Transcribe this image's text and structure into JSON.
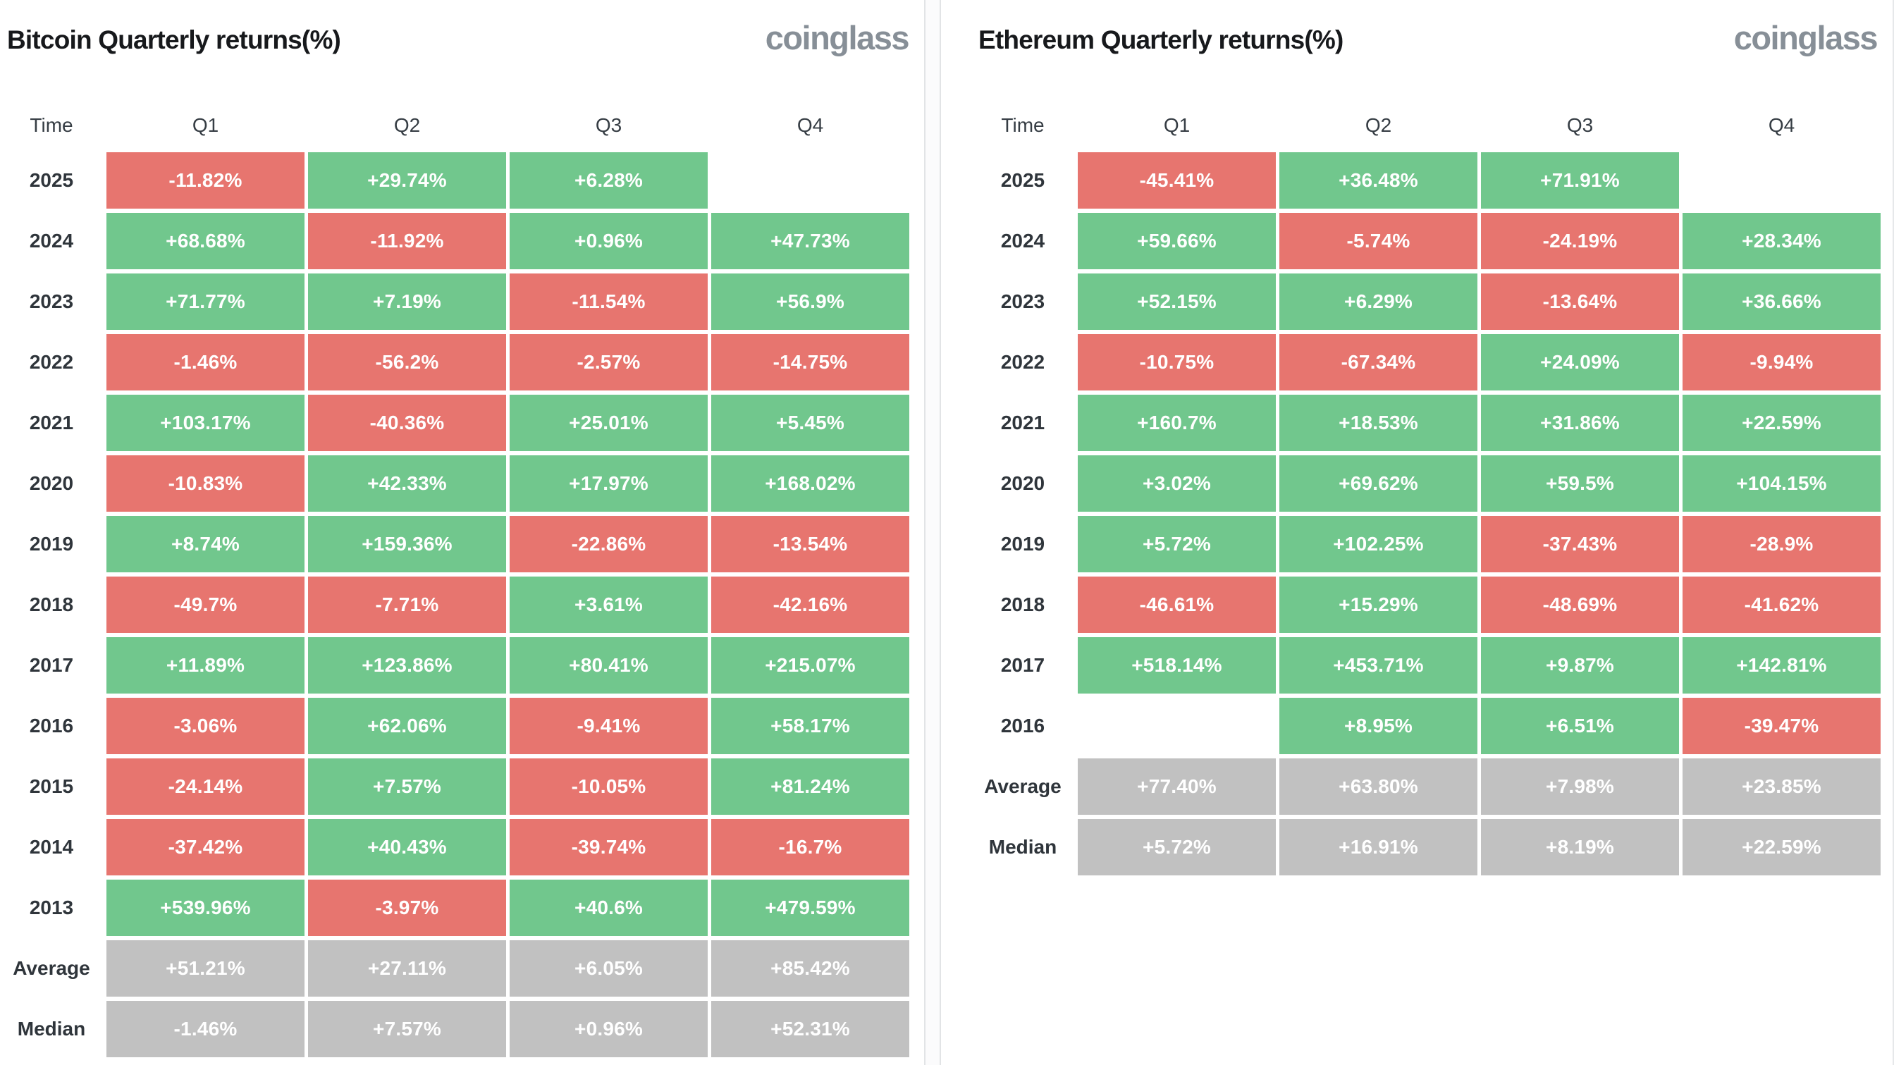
{
  "colors": {
    "positive": "#71c78d",
    "negative": "#e7756f",
    "neutral": "#c1c1c1",
    "cell_text": "#ffffff",
    "title_text": "#17191c",
    "logo_text": "#878f97"
  },
  "tables": [
    {
      "title": "Bitcoin Quarterly returns(%)",
      "logo": "coinglass",
      "columns": [
        "Time",
        "Q1",
        "Q2",
        "Q3",
        "Q4"
      ],
      "rows": [
        {
          "label": "2025",
          "cells": [
            {
              "value": "-11.82%",
              "tone": "negative"
            },
            {
              "value": "+29.74%",
              "tone": "positive"
            },
            {
              "value": "+6.28%",
              "tone": "positive"
            },
            {
              "value": "",
              "tone": "empty"
            }
          ]
        },
        {
          "label": "2024",
          "cells": [
            {
              "value": "+68.68%",
              "tone": "positive"
            },
            {
              "value": "-11.92%",
              "tone": "negative"
            },
            {
              "value": "+0.96%",
              "tone": "positive"
            },
            {
              "value": "+47.73%",
              "tone": "positive"
            }
          ]
        },
        {
          "label": "2023",
          "cells": [
            {
              "value": "+71.77%",
              "tone": "positive"
            },
            {
              "value": "+7.19%",
              "tone": "positive"
            },
            {
              "value": "-11.54%",
              "tone": "negative"
            },
            {
              "value": "+56.9%",
              "tone": "positive"
            }
          ]
        },
        {
          "label": "2022",
          "cells": [
            {
              "value": "-1.46%",
              "tone": "negative"
            },
            {
              "value": "-56.2%",
              "tone": "negative"
            },
            {
              "value": "-2.57%",
              "tone": "negative"
            },
            {
              "value": "-14.75%",
              "tone": "negative"
            }
          ]
        },
        {
          "label": "2021",
          "cells": [
            {
              "value": "+103.17%",
              "tone": "positive"
            },
            {
              "value": "-40.36%",
              "tone": "negative"
            },
            {
              "value": "+25.01%",
              "tone": "positive"
            },
            {
              "value": "+5.45%",
              "tone": "positive"
            }
          ]
        },
        {
          "label": "2020",
          "cells": [
            {
              "value": "-10.83%",
              "tone": "negative"
            },
            {
              "value": "+42.33%",
              "tone": "positive"
            },
            {
              "value": "+17.97%",
              "tone": "positive"
            },
            {
              "value": "+168.02%",
              "tone": "positive"
            }
          ]
        },
        {
          "label": "2019",
          "cells": [
            {
              "value": "+8.74%",
              "tone": "positive"
            },
            {
              "value": "+159.36%",
              "tone": "positive"
            },
            {
              "value": "-22.86%",
              "tone": "negative"
            },
            {
              "value": "-13.54%",
              "tone": "negative"
            }
          ]
        },
        {
          "label": "2018",
          "cells": [
            {
              "value": "-49.7%",
              "tone": "negative"
            },
            {
              "value": "-7.71%",
              "tone": "negative"
            },
            {
              "value": "+3.61%",
              "tone": "positive"
            },
            {
              "value": "-42.16%",
              "tone": "negative"
            }
          ]
        },
        {
          "label": "2017",
          "cells": [
            {
              "value": "+11.89%",
              "tone": "positive"
            },
            {
              "value": "+123.86%",
              "tone": "positive"
            },
            {
              "value": "+80.41%",
              "tone": "positive"
            },
            {
              "value": "+215.07%",
              "tone": "positive"
            }
          ]
        },
        {
          "label": "2016",
          "cells": [
            {
              "value": "-3.06%",
              "tone": "negative"
            },
            {
              "value": "+62.06%",
              "tone": "positive"
            },
            {
              "value": "-9.41%",
              "tone": "negative"
            },
            {
              "value": "+58.17%",
              "tone": "positive"
            }
          ]
        },
        {
          "label": "2015",
          "cells": [
            {
              "value": "-24.14%",
              "tone": "negative"
            },
            {
              "value": "+7.57%",
              "tone": "positive"
            },
            {
              "value": "-10.05%",
              "tone": "negative"
            },
            {
              "value": "+81.24%",
              "tone": "positive"
            }
          ]
        },
        {
          "label": "2014",
          "cells": [
            {
              "value": "-37.42%",
              "tone": "negative"
            },
            {
              "value": "+40.43%",
              "tone": "positive"
            },
            {
              "value": "-39.74%",
              "tone": "negative"
            },
            {
              "value": "-16.7%",
              "tone": "negative"
            }
          ]
        },
        {
          "label": "2013",
          "cells": [
            {
              "value": "+539.96%",
              "tone": "positive"
            },
            {
              "value": "-3.97%",
              "tone": "negative"
            },
            {
              "value": "+40.6%",
              "tone": "positive"
            },
            {
              "value": "+479.59%",
              "tone": "positive"
            }
          ]
        },
        {
          "label": "Average",
          "cells": [
            {
              "value": "+51.21%",
              "tone": "neutral"
            },
            {
              "value": "+27.11%",
              "tone": "neutral"
            },
            {
              "value": "+6.05%",
              "tone": "neutral"
            },
            {
              "value": "+85.42%",
              "tone": "neutral"
            }
          ]
        },
        {
          "label": "Median",
          "cells": [
            {
              "value": "-1.46%",
              "tone": "neutral"
            },
            {
              "value": "+7.57%",
              "tone": "neutral"
            },
            {
              "value": "+0.96%",
              "tone": "neutral"
            },
            {
              "value": "+52.31%",
              "tone": "neutral"
            }
          ]
        }
      ]
    },
    {
      "title": "Ethereum Quarterly returns(%)",
      "logo": "coinglass",
      "columns": [
        "Time",
        "Q1",
        "Q2",
        "Q3",
        "Q4"
      ],
      "rows": [
        {
          "label": "2025",
          "cells": [
            {
              "value": "-45.41%",
              "tone": "negative"
            },
            {
              "value": "+36.48%",
              "tone": "positive"
            },
            {
              "value": "+71.91%",
              "tone": "positive"
            },
            {
              "value": "",
              "tone": "empty"
            }
          ]
        },
        {
          "label": "2024",
          "cells": [
            {
              "value": "+59.66%",
              "tone": "positive"
            },
            {
              "value": "-5.74%",
              "tone": "negative"
            },
            {
              "value": "-24.19%",
              "tone": "negative"
            },
            {
              "value": "+28.34%",
              "tone": "positive"
            }
          ]
        },
        {
          "label": "2023",
          "cells": [
            {
              "value": "+52.15%",
              "tone": "positive"
            },
            {
              "value": "+6.29%",
              "tone": "positive"
            },
            {
              "value": "-13.64%",
              "tone": "negative"
            },
            {
              "value": "+36.66%",
              "tone": "positive"
            }
          ]
        },
        {
          "label": "2022",
          "cells": [
            {
              "value": "-10.75%",
              "tone": "negative"
            },
            {
              "value": "-67.34%",
              "tone": "negative"
            },
            {
              "value": "+24.09%",
              "tone": "positive"
            },
            {
              "value": "-9.94%",
              "tone": "negative"
            }
          ]
        },
        {
          "label": "2021",
          "cells": [
            {
              "value": "+160.7%",
              "tone": "positive"
            },
            {
              "value": "+18.53%",
              "tone": "positive"
            },
            {
              "value": "+31.86%",
              "tone": "positive"
            },
            {
              "value": "+22.59%",
              "tone": "positive"
            }
          ]
        },
        {
          "label": "2020",
          "cells": [
            {
              "value": "+3.02%",
              "tone": "positive"
            },
            {
              "value": "+69.62%",
              "tone": "positive"
            },
            {
              "value": "+59.5%",
              "tone": "positive"
            },
            {
              "value": "+104.15%",
              "tone": "positive"
            }
          ]
        },
        {
          "label": "2019",
          "cells": [
            {
              "value": "+5.72%",
              "tone": "positive"
            },
            {
              "value": "+102.25%",
              "tone": "positive"
            },
            {
              "value": "-37.43%",
              "tone": "negative"
            },
            {
              "value": "-28.9%",
              "tone": "negative"
            }
          ]
        },
        {
          "label": "2018",
          "cells": [
            {
              "value": "-46.61%",
              "tone": "negative"
            },
            {
              "value": "+15.29%",
              "tone": "positive"
            },
            {
              "value": "-48.69%",
              "tone": "negative"
            },
            {
              "value": "-41.62%",
              "tone": "negative"
            }
          ]
        },
        {
          "label": "2017",
          "cells": [
            {
              "value": "+518.14%",
              "tone": "positive"
            },
            {
              "value": "+453.71%",
              "tone": "positive"
            },
            {
              "value": "+9.87%",
              "tone": "positive"
            },
            {
              "value": "+142.81%",
              "tone": "positive"
            }
          ]
        },
        {
          "label": "2016",
          "cells": [
            {
              "value": "",
              "tone": "empty"
            },
            {
              "value": "+8.95%",
              "tone": "positive"
            },
            {
              "value": "+6.51%",
              "tone": "positive"
            },
            {
              "value": "-39.47%",
              "tone": "negative"
            }
          ]
        },
        {
          "label": "Average",
          "cells": [
            {
              "value": "+77.40%",
              "tone": "neutral"
            },
            {
              "value": "+63.80%",
              "tone": "neutral"
            },
            {
              "value": "+7.98%",
              "tone": "neutral"
            },
            {
              "value": "+23.85%",
              "tone": "neutral"
            }
          ]
        },
        {
          "label": "Median",
          "cells": [
            {
              "value": "+5.72%",
              "tone": "neutral"
            },
            {
              "value": "+16.91%",
              "tone": "neutral"
            },
            {
              "value": "+8.19%",
              "tone": "neutral"
            },
            {
              "value": "+22.59%",
              "tone": "neutral"
            }
          ]
        }
      ]
    }
  ],
  "chart_data": [
    {
      "type": "heatmap",
      "title": "Bitcoin Quarterly returns(%)",
      "columns": [
        "Q1",
        "Q2",
        "Q3",
        "Q4"
      ],
      "rows": [
        "2025",
        "2024",
        "2023",
        "2022",
        "2021",
        "2020",
        "2019",
        "2018",
        "2017",
        "2016",
        "2015",
        "2014",
        "2013",
        "Average",
        "Median"
      ],
      "unit": "%",
      "values": [
        [
          -11.82,
          29.74,
          6.28,
          null
        ],
        [
          68.68,
          -11.92,
          0.96,
          47.73
        ],
        [
          71.77,
          7.19,
          -11.54,
          56.9
        ],
        [
          -1.46,
          -56.2,
          -2.57,
          -14.75
        ],
        [
          103.17,
          -40.36,
          25.01,
          5.45
        ],
        [
          -10.83,
          42.33,
          17.97,
          168.02
        ],
        [
          8.74,
          159.36,
          -22.86,
          -13.54
        ],
        [
          -49.7,
          -7.71,
          3.61,
          -42.16
        ],
        [
          11.89,
          123.86,
          80.41,
          215.07
        ],
        [
          -3.06,
          62.06,
          -9.41,
          58.17
        ],
        [
          -24.14,
          7.57,
          -10.05,
          81.24
        ],
        [
          -37.42,
          40.43,
          -39.74,
          -16.7
        ],
        [
          539.96,
          -3.97,
          40.6,
          479.59
        ],
        [
          51.21,
          27.11,
          6.05,
          85.42
        ],
        [
          -1.46,
          7.57,
          0.96,
          52.31
        ]
      ],
      "legend_position": "none",
      "color_rule": "green = positive, red = negative, gray = Average/Median summary rows, blank = no data"
    },
    {
      "type": "heatmap",
      "title": "Ethereum Quarterly returns(%)",
      "columns": [
        "Q1",
        "Q2",
        "Q3",
        "Q4"
      ],
      "rows": [
        "2025",
        "2024",
        "2023",
        "2022",
        "2021",
        "2020",
        "2019",
        "2018",
        "2017",
        "2016",
        "Average",
        "Median"
      ],
      "unit": "%",
      "values": [
        [
          -45.41,
          36.48,
          71.91,
          null
        ],
        [
          59.66,
          -5.74,
          -24.19,
          28.34
        ],
        [
          52.15,
          6.29,
          -13.64,
          36.66
        ],
        [
          -10.75,
          -67.34,
          24.09,
          -9.94
        ],
        [
          160.7,
          18.53,
          31.86,
          22.59
        ],
        [
          3.02,
          69.62,
          59.5,
          104.15
        ],
        [
          5.72,
          102.25,
          -37.43,
          -28.9
        ],
        [
          -46.61,
          15.29,
          -48.69,
          -41.62
        ],
        [
          518.14,
          453.71,
          9.87,
          142.81
        ],
        [
          null,
          8.95,
          6.51,
          -39.47
        ],
        [
          77.4,
          63.8,
          7.98,
          23.85
        ],
        [
          5.72,
          16.91,
          8.19,
          22.59
        ]
      ],
      "legend_position": "none",
      "color_rule": "green = positive, red = negative, gray = Average/Median summary rows, blank = no data"
    }
  ]
}
